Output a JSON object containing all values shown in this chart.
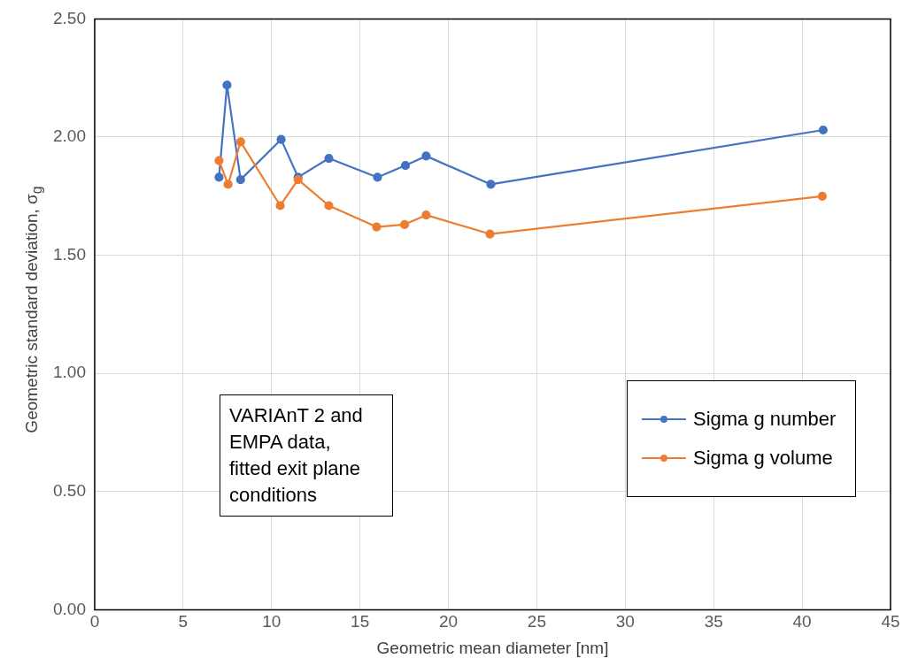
{
  "chart_data": {
    "type": "line",
    "xlabel": "Geometric mean diameter [nm]",
    "ylabel": "Geometric standard deviation, σ$_{g}$",
    "xlim": [
      0,
      45
    ],
    "xticks": [
      0,
      5,
      10,
      15,
      20,
      25,
      30,
      35,
      40,
      45
    ],
    "ylim": [
      0,
      2.5
    ],
    "yticks": [
      {
        "value": 0,
        "label": "0.00"
      },
      {
        "value": 0.5,
        "label": "0.50"
      },
      {
        "value": 1,
        "label": "1.00"
      },
      {
        "value": 1.5,
        "label": "1.50"
      },
      {
        "value": 2,
        "label": "2.00"
      },
      {
        "value": 2.5,
        "label": "2.50"
      }
    ],
    "grid": true,
    "legend": "right",
    "marker": "circle",
    "line_style": "solid",
    "annotations": [
      "VARIAnT 2 and EMPA data, fitted exit plane conditions"
    ],
    "series": [
      {
        "name": "Sigma g number",
        "color": "#4472c4",
        "x": [
          7.03,
          7.48,
          8.25,
          10.54,
          11.5,
          13.24,
          15.99,
          17.57,
          18.74,
          22.4,
          41.19
        ],
        "values": [
          1.83,
          2.22,
          1.82,
          1.99,
          1.83,
          1.91,
          1.83,
          1.88,
          1.92,
          1.8,
          2.03
        ]
      },
      {
        "name": "Sigma g volume",
        "color": "#ed7d31",
        "x": [
          7.03,
          7.54,
          8.25,
          10.49,
          11.5,
          13.24,
          15.94,
          17.52,
          18.74,
          22.35,
          41.14
        ],
        "values": [
          1.9,
          1.8,
          1.98,
          1.71,
          1.82,
          1.71,
          1.62,
          1.63,
          1.67,
          1.59,
          1.75
        ]
      }
    ]
  }
}
